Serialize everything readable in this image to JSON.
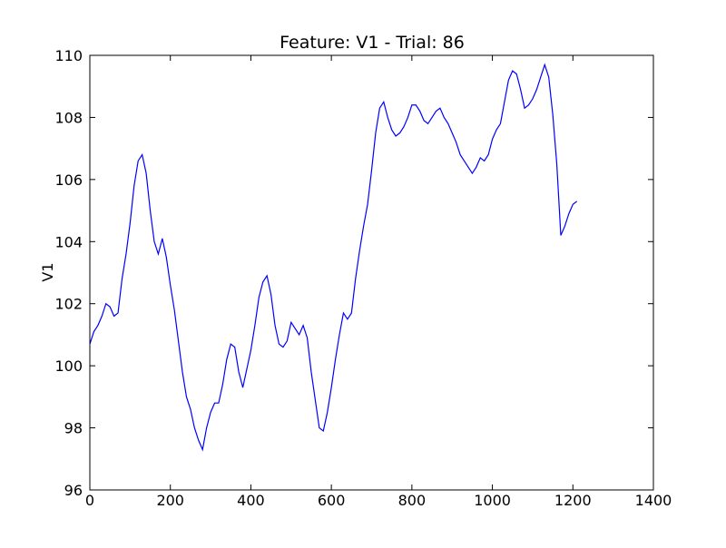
{
  "chart_data": {
    "type": "line",
    "title": "Feature: V1 - Trial: 86",
    "y_label": "V1",
    "x": [
      0,
      10,
      20,
      30,
      40,
      50,
      60,
      70,
      80,
      90,
      100,
      110,
      120,
      130,
      140,
      150,
      160,
      170,
      180,
      190,
      200,
      210,
      220,
      230,
      240,
      250,
      260,
      270,
      280,
      290,
      300,
      310,
      320,
      330,
      340,
      350,
      360,
      370,
      380,
      390,
      400,
      410,
      420,
      430,
      440,
      450,
      460,
      470,
      480,
      490,
      500,
      510,
      520,
      530,
      540,
      550,
      560,
      570,
      580,
      590,
      600,
      610,
      620,
      630,
      640,
      650,
      660,
      670,
      680,
      690,
      700,
      710,
      720,
      730,
      740,
      750,
      760,
      770,
      780,
      790,
      800,
      810,
      820,
      830,
      840,
      850,
      860,
      870,
      880,
      890,
      900,
      910,
      920,
      930,
      940,
      950,
      960,
      970,
      980,
      990,
      1000,
      1010,
      1020,
      1030,
      1040,
      1050,
      1060,
      1070,
      1080,
      1090,
      1100,
      1110,
      1120,
      1130,
      1140,
      1150,
      1160,
      1170,
      1180,
      1190,
      1200,
      1210
    ],
    "series": [
      {
        "name": "V1",
        "color": "#0000ff",
        "values": [
          100.7,
          101.1,
          101.3,
          101.6,
          102.0,
          101.9,
          101.6,
          101.7,
          102.8,
          103.6,
          104.6,
          105.8,
          106.6,
          106.8,
          106.2,
          105.0,
          104.0,
          103.6,
          104.1,
          103.5,
          102.6,
          101.8,
          100.8,
          99.8,
          99.0,
          98.6,
          98.0,
          97.6,
          97.3,
          98.0,
          98.5,
          98.8,
          98.8,
          99.4,
          100.2,
          100.7,
          100.6,
          99.8,
          99.3,
          99.9,
          100.5,
          101.3,
          102.2,
          102.7,
          102.9,
          102.3,
          101.3,
          100.7,
          100.6,
          100.8,
          101.4,
          101.2,
          101.0,
          101.3,
          100.9,
          99.8,
          98.9,
          98.0,
          97.9,
          98.5,
          99.3,
          100.2,
          101.0,
          101.7,
          101.5,
          101.7,
          102.8,
          103.7,
          104.5,
          105.2,
          106.3,
          107.5,
          108.3,
          108.5,
          108.0,
          107.6,
          107.4,
          107.5,
          107.7,
          108.0,
          108.4,
          108.4,
          108.2,
          107.9,
          107.8,
          108.0,
          108.2,
          108.3,
          108.0,
          107.8,
          107.5,
          107.2,
          106.8,
          106.6,
          106.4,
          106.2,
          106.4,
          106.7,
          106.6,
          106.8,
          107.3,
          107.6,
          107.8,
          108.5,
          109.2,
          109.5,
          109.4,
          108.9,
          108.3,
          108.4,
          108.6,
          108.9,
          109.3,
          109.7,
          109.3,
          108.1,
          106.5,
          104.2,
          104.5,
          104.9,
          105.2,
          105.3
        ]
      }
    ],
    "xlim": [
      0,
      1400
    ],
    "xticks": [
      0,
      200,
      400,
      600,
      800,
      1000,
      1200,
      1400
    ],
    "ylim": [
      96,
      110
    ],
    "yticks": [
      96,
      98,
      100,
      102,
      104,
      106,
      108,
      110
    ]
  }
}
